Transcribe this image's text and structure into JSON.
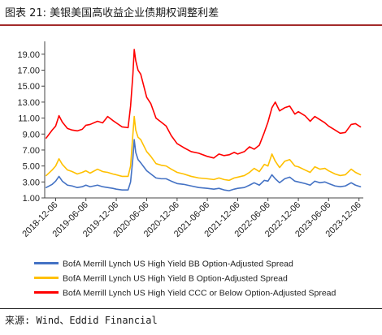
{
  "figure": {
    "title": "图表 21: 美银美国高收益企业债期权调整利差",
    "source": "来源: Wind、Eddid Financial"
  },
  "chart_data": {
    "type": "line",
    "title": "",
    "xlabel": "",
    "ylabel": "",
    "ylim": [
      1.0,
      20.0
    ],
    "xlim": [
      "2018-10-01",
      "2024-01-01"
    ],
    "y_ticks": [
      "1.00",
      "3.00",
      "5.00",
      "7.00",
      "9.00",
      "11.00",
      "13.00",
      "15.00",
      "17.00",
      "19.00"
    ],
    "y_tick_values": [
      1,
      3,
      5,
      7,
      9,
      11,
      13,
      15,
      17,
      19
    ],
    "x_ticks": [
      "2018-12-06",
      "2019-06-06",
      "2019-12-06",
      "2020-06-06",
      "2020-12-06",
      "2021-06-06",
      "2021-12-06",
      "2022-06-06",
      "2022-12-06",
      "2023-06-06",
      "2023-12-06"
    ],
    "grid": false,
    "legend_position": "bottom",
    "series": [
      {
        "name": "BofA Merrill Lynch US High Yield BB Option-Adjusted Spread",
        "color": "#4472c4",
        "points": [
          [
            "2018-10-10",
            2.3
          ],
          [
            "2018-11-15",
            2.7
          ],
          [
            "2018-12-06",
            3.1
          ],
          [
            "2018-12-26",
            3.7
          ],
          [
            "2019-01-15",
            3.1
          ],
          [
            "2019-02-15",
            2.6
          ],
          [
            "2019-03-15",
            2.5
          ],
          [
            "2019-04-15",
            2.3
          ],
          [
            "2019-05-15",
            2.4
          ],
          [
            "2019-06-06",
            2.6
          ],
          [
            "2019-07-01",
            2.4
          ],
          [
            "2019-08-15",
            2.6
          ],
          [
            "2019-09-15",
            2.4
          ],
          [
            "2019-10-15",
            2.3
          ],
          [
            "2019-11-15",
            2.2
          ],
          [
            "2019-12-06",
            2.1
          ],
          [
            "2020-01-10",
            2.0
          ],
          [
            "2020-02-15",
            2.0
          ],
          [
            "2020-03-01",
            3.0
          ],
          [
            "2020-03-15",
            6.0
          ],
          [
            "2020-03-23",
            8.3
          ],
          [
            "2020-04-01",
            6.7
          ],
          [
            "2020-04-15",
            5.8
          ],
          [
            "2020-05-01",
            5.4
          ],
          [
            "2020-06-06",
            4.4
          ],
          [
            "2020-07-01",
            4.0
          ],
          [
            "2020-08-01",
            3.5
          ],
          [
            "2020-09-01",
            3.4
          ],
          [
            "2020-10-01",
            3.4
          ],
          [
            "2020-11-01",
            3.1
          ],
          [
            "2020-12-06",
            2.8
          ],
          [
            "2021-01-15",
            2.7
          ],
          [
            "2021-03-01",
            2.5
          ],
          [
            "2021-04-15",
            2.3
          ],
          [
            "2021-06-06",
            2.2
          ],
          [
            "2021-07-15",
            2.1
          ],
          [
            "2021-08-15",
            2.2
          ],
          [
            "2021-09-15",
            2.0
          ],
          [
            "2021-10-15",
            1.9
          ],
          [
            "2021-11-15",
            2.1
          ],
          [
            "2021-12-06",
            2.2
          ],
          [
            "2022-01-15",
            2.3
          ],
          [
            "2022-02-15",
            2.6
          ],
          [
            "2022-03-15",
            2.9
          ],
          [
            "2022-04-15",
            2.6
          ],
          [
            "2022-05-15",
            3.2
          ],
          [
            "2022-06-06",
            3.1
          ],
          [
            "2022-06-30",
            3.9
          ],
          [
            "2022-07-20",
            3.4
          ],
          [
            "2022-08-15",
            2.9
          ],
          [
            "2022-09-15",
            3.4
          ],
          [
            "2022-10-15",
            3.6
          ],
          [
            "2022-11-15",
            3.1
          ],
          [
            "2022-12-06",
            3.0
          ],
          [
            "2023-01-15",
            2.8
          ],
          [
            "2023-02-15",
            2.6
          ],
          [
            "2023-03-15",
            3.1
          ],
          [
            "2023-04-15",
            2.9
          ],
          [
            "2023-05-15",
            3.0
          ],
          [
            "2023-06-06",
            2.8
          ],
          [
            "2023-07-15",
            2.5
          ],
          [
            "2023-08-15",
            2.4
          ],
          [
            "2023-09-15",
            2.5
          ],
          [
            "2023-10-20",
            2.9
          ],
          [
            "2023-11-15",
            2.6
          ],
          [
            "2023-12-15",
            2.4
          ]
        ]
      },
      {
        "name": "BofA Merrill Lynch US High Yield B Option-Adjusted Spread",
        "color": "#ffc000",
        "points": [
          [
            "2018-10-10",
            3.8
          ],
          [
            "2018-11-15",
            4.5
          ],
          [
            "2018-12-06",
            5.0
          ],
          [
            "2018-12-26",
            5.9
          ],
          [
            "2019-01-15",
            5.2
          ],
          [
            "2019-02-15",
            4.5
          ],
          [
            "2019-03-15",
            4.3
          ],
          [
            "2019-04-15",
            4.0
          ],
          [
            "2019-05-15",
            4.2
          ],
          [
            "2019-06-06",
            4.4
          ],
          [
            "2019-07-01",
            4.1
          ],
          [
            "2019-08-15",
            4.6
          ],
          [
            "2019-09-15",
            4.3
          ],
          [
            "2019-10-15",
            4.2
          ],
          [
            "2019-11-15",
            4.0
          ],
          [
            "2019-12-06",
            3.9
          ],
          [
            "2020-01-10",
            3.7
          ],
          [
            "2020-02-15",
            3.7
          ],
          [
            "2020-03-01",
            5.0
          ],
          [
            "2020-03-15",
            9.0
          ],
          [
            "2020-03-23",
            11.2
          ],
          [
            "2020-04-01",
            9.5
          ],
          [
            "2020-04-15",
            8.6
          ],
          [
            "2020-05-01",
            8.3
          ],
          [
            "2020-06-06",
            6.8
          ],
          [
            "2020-07-01",
            6.2
          ],
          [
            "2020-08-01",
            5.3
          ],
          [
            "2020-09-01",
            5.1
          ],
          [
            "2020-10-01",
            5.0
          ],
          [
            "2020-11-01",
            4.6
          ],
          [
            "2020-12-06",
            4.2
          ],
          [
            "2021-01-15",
            4.0
          ],
          [
            "2021-03-01",
            3.7
          ],
          [
            "2021-04-15",
            3.5
          ],
          [
            "2021-06-06",
            3.4
          ],
          [
            "2021-07-15",
            3.3
          ],
          [
            "2021-08-15",
            3.5
          ],
          [
            "2021-09-15",
            3.3
          ],
          [
            "2021-10-15",
            3.2
          ],
          [
            "2021-11-15",
            3.5
          ],
          [
            "2021-12-06",
            3.6
          ],
          [
            "2022-01-15",
            3.8
          ],
          [
            "2022-02-15",
            4.2
          ],
          [
            "2022-03-15",
            4.7
          ],
          [
            "2022-04-15",
            4.3
          ],
          [
            "2022-05-15",
            5.2
          ],
          [
            "2022-06-06",
            5.0
          ],
          [
            "2022-06-30",
            6.5
          ],
          [
            "2022-07-20",
            5.6
          ],
          [
            "2022-08-15",
            4.8
          ],
          [
            "2022-09-15",
            5.6
          ],
          [
            "2022-10-15",
            5.8
          ],
          [
            "2022-11-15",
            5.0
          ],
          [
            "2022-12-06",
            4.9
          ],
          [
            "2023-01-15",
            4.5
          ],
          [
            "2023-02-15",
            4.2
          ],
          [
            "2023-03-15",
            4.9
          ],
          [
            "2023-04-15",
            4.6
          ],
          [
            "2023-05-15",
            4.7
          ],
          [
            "2023-06-06",
            4.4
          ],
          [
            "2023-07-15",
            4.0
          ],
          [
            "2023-08-15",
            3.8
          ],
          [
            "2023-09-15",
            3.9
          ],
          [
            "2023-10-20",
            4.6
          ],
          [
            "2023-11-15",
            4.2
          ],
          [
            "2023-12-15",
            3.9
          ]
        ]
      },
      {
        "name": "BofA Merrill Lynch US High Yield CCC or Below Option-Adjusted Spread",
        "color": "#ff0000",
        "points": [
          [
            "2018-10-10",
            8.5
          ],
          [
            "2018-11-15",
            9.5
          ],
          [
            "2018-12-06",
            10.0
          ],
          [
            "2018-12-26",
            11.3
          ],
          [
            "2019-01-15",
            10.5
          ],
          [
            "2019-02-15",
            9.7
          ],
          [
            "2019-03-15",
            9.5
          ],
          [
            "2019-04-15",
            9.4
          ],
          [
            "2019-05-15",
            9.6
          ],
          [
            "2019-06-06",
            10.1
          ],
          [
            "2019-07-01",
            10.2
          ],
          [
            "2019-08-15",
            10.6
          ],
          [
            "2019-09-15",
            10.4
          ],
          [
            "2019-10-15",
            11.2
          ],
          [
            "2019-11-15",
            10.7
          ],
          [
            "2019-12-06",
            10.4
          ],
          [
            "2020-01-10",
            9.9
          ],
          [
            "2020-02-15",
            9.8
          ],
          [
            "2020-03-01",
            12.5
          ],
          [
            "2020-03-15",
            16.5
          ],
          [
            "2020-03-23",
            19.6
          ],
          [
            "2020-04-01",
            18.2
          ],
          [
            "2020-04-15",
            17.0
          ],
          [
            "2020-05-01",
            16.5
          ],
          [
            "2020-06-06",
            13.6
          ],
          [
            "2020-07-01",
            12.8
          ],
          [
            "2020-08-01",
            11.0
          ],
          [
            "2020-09-01",
            10.5
          ],
          [
            "2020-10-01",
            10.0
          ],
          [
            "2020-11-01",
            8.8
          ],
          [
            "2020-12-06",
            7.8
          ],
          [
            "2021-01-15",
            7.3
          ],
          [
            "2021-03-01",
            6.8
          ],
          [
            "2021-04-15",
            6.6
          ],
          [
            "2021-06-06",
            6.2
          ],
          [
            "2021-07-15",
            6.0
          ],
          [
            "2021-08-15",
            6.5
          ],
          [
            "2021-09-15",
            6.3
          ],
          [
            "2021-10-15",
            6.4
          ],
          [
            "2021-11-15",
            6.7
          ],
          [
            "2021-12-06",
            6.5
          ],
          [
            "2022-01-15",
            6.8
          ],
          [
            "2022-02-15",
            7.4
          ],
          [
            "2022-03-15",
            7.1
          ],
          [
            "2022-04-15",
            7.6
          ],
          [
            "2022-05-15",
            9.2
          ],
          [
            "2022-06-06",
            10.5
          ],
          [
            "2022-06-30",
            12.3
          ],
          [
            "2022-07-20",
            13.0
          ],
          [
            "2022-08-15",
            11.9
          ],
          [
            "2022-09-15",
            12.3
          ],
          [
            "2022-10-15",
            12.5
          ],
          [
            "2022-11-15",
            11.5
          ],
          [
            "2022-12-06",
            11.8
          ],
          [
            "2023-01-15",
            11.3
          ],
          [
            "2023-02-15",
            10.6
          ],
          [
            "2023-03-15",
            11.2
          ],
          [
            "2023-04-15",
            10.8
          ],
          [
            "2023-05-15",
            10.4
          ],
          [
            "2023-06-06",
            10.0
          ],
          [
            "2023-07-15",
            9.5
          ],
          [
            "2023-08-15",
            9.1
          ],
          [
            "2023-09-15",
            9.2
          ],
          [
            "2023-10-20",
            10.2
          ],
          [
            "2023-11-15",
            10.3
          ],
          [
            "2023-12-15",
            9.9
          ]
        ]
      }
    ]
  }
}
